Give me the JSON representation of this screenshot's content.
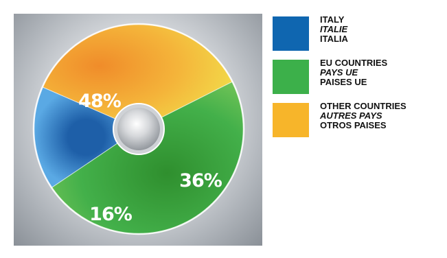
{
  "chart_data": {
    "type": "pie",
    "slices": [
      {
        "value": 16,
        "label": "16%",
        "color": "#2a78c6"
      },
      {
        "value": 36,
        "label": "36%",
        "color": "#f3b52e"
      },
      {
        "value": 48,
        "label": "48%",
        "color": "#3aa83c"
      }
    ]
  },
  "legend": [
    {
      "color": "#0f66b0",
      "en": "ITALY",
      "fr": "ITALIE",
      "es": "ITALIA"
    },
    {
      "color": "#3cb04a",
      "en": "EU COUNTRIES",
      "fr": "PAYS UE",
      "es": "PAISES UE"
    },
    {
      "color": "#f7b52a",
      "en": "OTHER COUNTRIES",
      "fr": "AUTRES PAYS",
      "es": "OTROS PAISES"
    }
  ]
}
